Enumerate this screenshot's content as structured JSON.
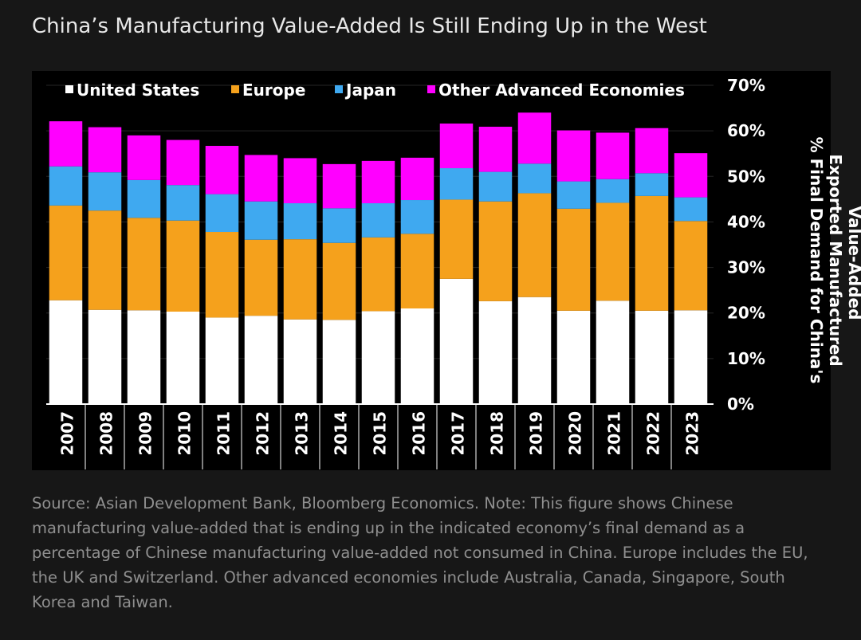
{
  "title": "China’s Manufacturing Value-Added Is Still Ending Up in the West",
  "source_note": "Source: Asian Development Bank, Bloomberg Economics. Note: This figure shows Chinese manufacturing value-added that is ending up in the indicated economy’s final demand as a percentage of Chinese manufacturing value-added not consumed in China. Europe includes the EU, the UK and Switzerland. Other advanced economies include Australia, Canada, Singapore, South Korea and Taiwan.",
  "colors": {
    "background": "#171717",
    "plot_background": "#000000",
    "United States": "#ffffff",
    "Europe": "#f5a11c",
    "Japan": "#3fa9f0",
    "Other Advanced Economies": "#ff00ff"
  },
  "chart_data": {
    "type": "bar",
    "stacked": true,
    "title": "China’s Manufacturing Value-Added Is Still Ending Up in the West",
    "ylabel": "% Final Demand for China's Exported Manufactured Value-Added",
    "xlabel": "",
    "ylim": [
      0,
      70
    ],
    "y_ticks": [
      "0%",
      "10%",
      "20%",
      "30%",
      "40%",
      "50%",
      "60%",
      "70%"
    ],
    "y_axis_side": "right",
    "grid": false,
    "legend_position": "top",
    "categories": [
      "2007",
      "2008",
      "2009",
      "2010",
      "2011",
      "2012",
      "2013",
      "2014",
      "2015",
      "2016",
      "2017",
      "2018",
      "2019",
      "2020",
      "2021",
      "2022",
      "2023"
    ],
    "series": [
      {
        "name": "United States",
        "color": "#ffffff",
        "values": [
          22.8,
          20.7,
          20.6,
          20.3,
          19.0,
          19.4,
          18.6,
          18.5,
          20.4,
          21.0,
          27.5,
          22.6,
          23.5,
          20.5,
          22.7,
          20.5,
          20.6
        ]
      },
      {
        "name": "Europe",
        "color": "#f5a11c",
        "values": [
          20.8,
          21.8,
          20.3,
          20.0,
          18.8,
          16.7,
          17.6,
          16.9,
          16.2,
          16.4,
          17.4,
          21.9,
          22.8,
          22.4,
          21.5,
          25.2,
          19.6
        ]
      },
      {
        "name": "Japan",
        "color": "#3fa9f0",
        "values": [
          8.6,
          8.4,
          8.3,
          7.8,
          8.3,
          8.4,
          7.9,
          7.6,
          7.5,
          7.4,
          6.9,
          6.5,
          6.5,
          6.0,
          5.2,
          5.0,
          5.2
        ]
      },
      {
        "name": "Other Advanced Economies",
        "color": "#ff00ff",
        "values": [
          9.9,
          9.9,
          9.8,
          9.9,
          10.6,
          10.2,
          9.9,
          9.7,
          9.3,
          9.3,
          9.8,
          9.9,
          11.2,
          11.2,
          10.2,
          9.9,
          9.7
        ]
      }
    ]
  }
}
